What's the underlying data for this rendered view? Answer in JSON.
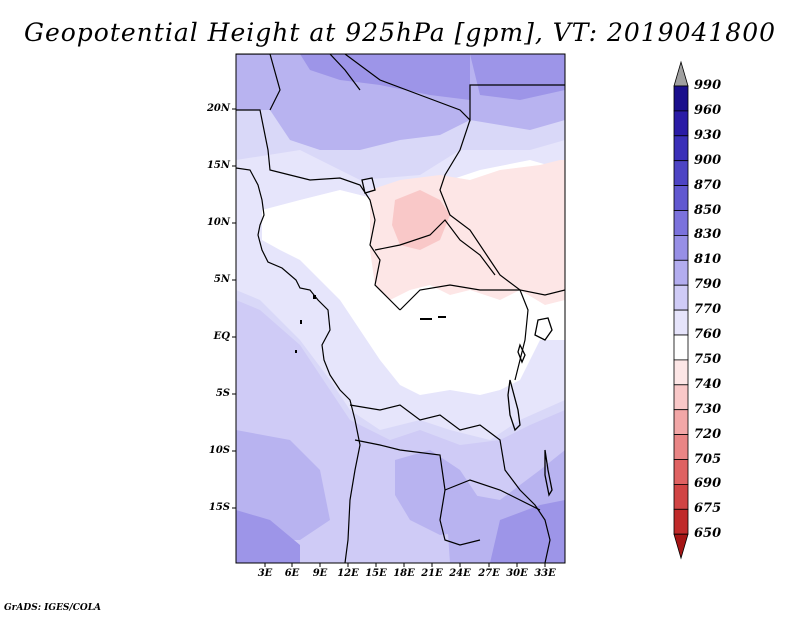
{
  "title": "Geopotential Height at 925hPa [gpm], VT: 2019041800",
  "map": {
    "lat_labels": [
      "20N",
      "15N",
      "10N",
      "5N",
      "EQ",
      "5S",
      "10S",
      "15S"
    ],
    "lon_labels": [
      "3E",
      "6E",
      "9E",
      "12E",
      "15E",
      "18E",
      "21E",
      "24E",
      "27E",
      "30E",
      "33E"
    ]
  },
  "colorbar": {
    "levels": [
      "990",
      "960",
      "930",
      "900",
      "870",
      "850",
      "830",
      "810",
      "790",
      "770",
      "760",
      "750",
      "740",
      "730",
      "720",
      "705",
      "690",
      "675",
      "650"
    ],
    "colors": [
      "#1a0f8c",
      "#2a1ba6",
      "#3a2fb8",
      "#4d44c4",
      "#6158d0",
      "#7b72dc",
      "#978fe6",
      "#b3adef",
      "#cfcbf6",
      "#e6e4fb",
      "#ffffff",
      "#fde6e6",
      "#f9c8c8",
      "#f2a7a7",
      "#e98585",
      "#df6262",
      "#d14444",
      "#c02a2a",
      "#a51515"
    ],
    "top_color": "#a0a0a0"
  },
  "credit": "GrADS: IGES/COLA"
}
